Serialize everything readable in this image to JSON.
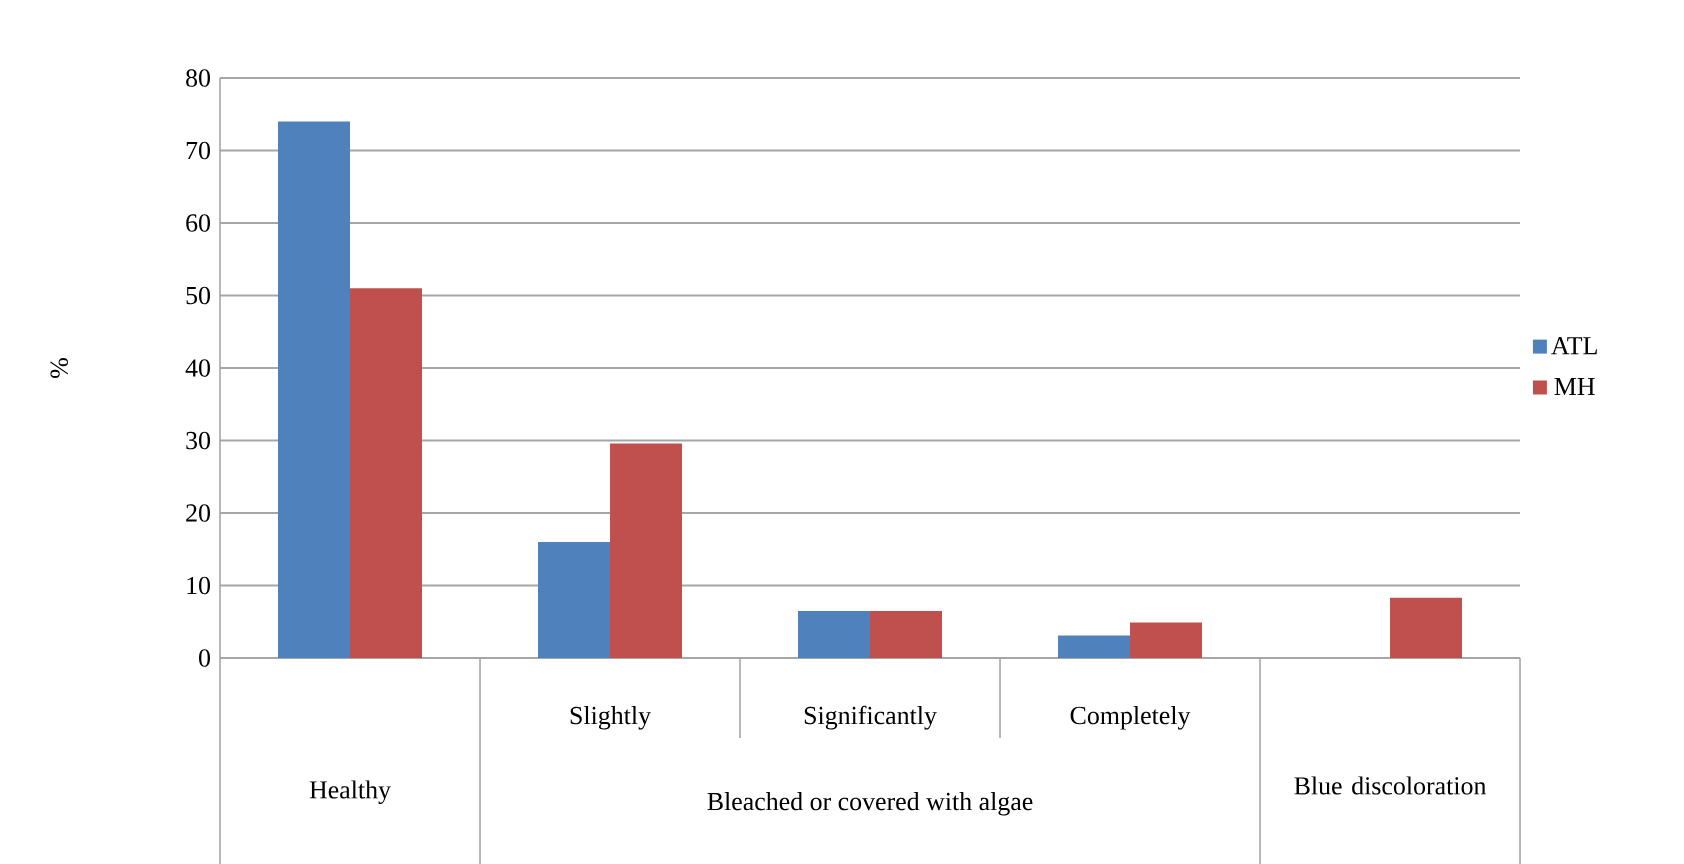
{
  "chart_data": {
    "type": "bar",
    "ylabel": "%",
    "categories": [
      "Healthy",
      "Slightly",
      "Significantly",
      "Completely",
      "Blue discoloration"
    ],
    "series": [
      {
        "name": "ATL",
        "color": "#4f81bd",
        "values": [
          74,
          16,
          6.5,
          3.1,
          0
        ]
      },
      {
        "name": "MH",
        "color": "#c0504d",
        "values": [
          51,
          29.6,
          6.5,
          4.9,
          8.3
        ]
      }
    ],
    "ylim": [
      0,
      80
    ],
    "yticks": [
      0,
      10,
      20,
      30,
      40,
      50,
      60,
      70,
      80
    ],
    "grid": "y",
    "legend": "right",
    "annotations": [
      "Bleached or covered with algae"
    ]
  }
}
